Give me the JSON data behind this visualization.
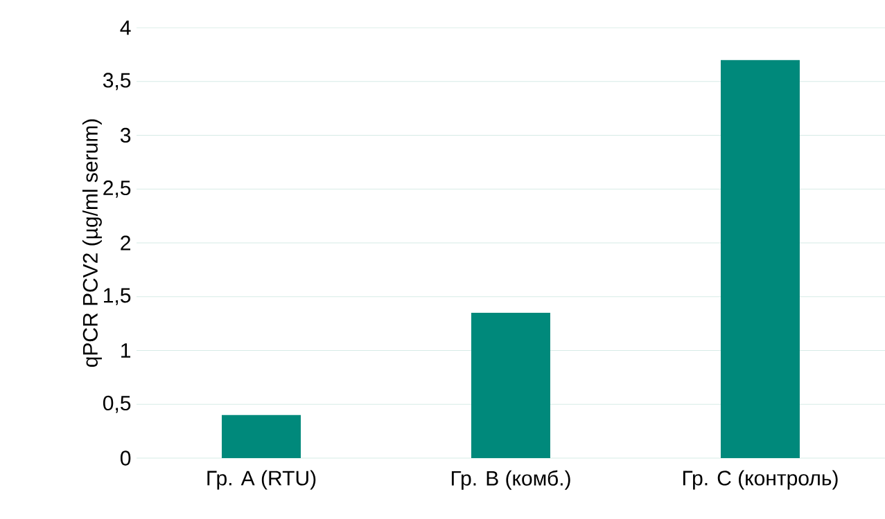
{
  "chart_data": {
    "type": "bar",
    "ylabel": "qPCR PCV2 (µg/ml serum)",
    "categories": [
      "Гр. A (RTU)",
      "Гр. B (комб.)",
      "Гр. C (контроль)"
    ],
    "values": [
      0.4,
      1.35,
      3.7
    ],
    "color": "#00897b",
    "ylim": [
      0,
      4
    ],
    "yticks": [
      0,
      {
        "value": 0.5,
        "label": "0,5"
      },
      1,
      {
        "value": 1.5,
        "label": "1,5"
      },
      2,
      {
        "value": 2.5,
        "label": "2,5"
      },
      3,
      {
        "value": 3.5,
        "label": "3,5"
      },
      4
    ],
    "grid": "y"
  }
}
